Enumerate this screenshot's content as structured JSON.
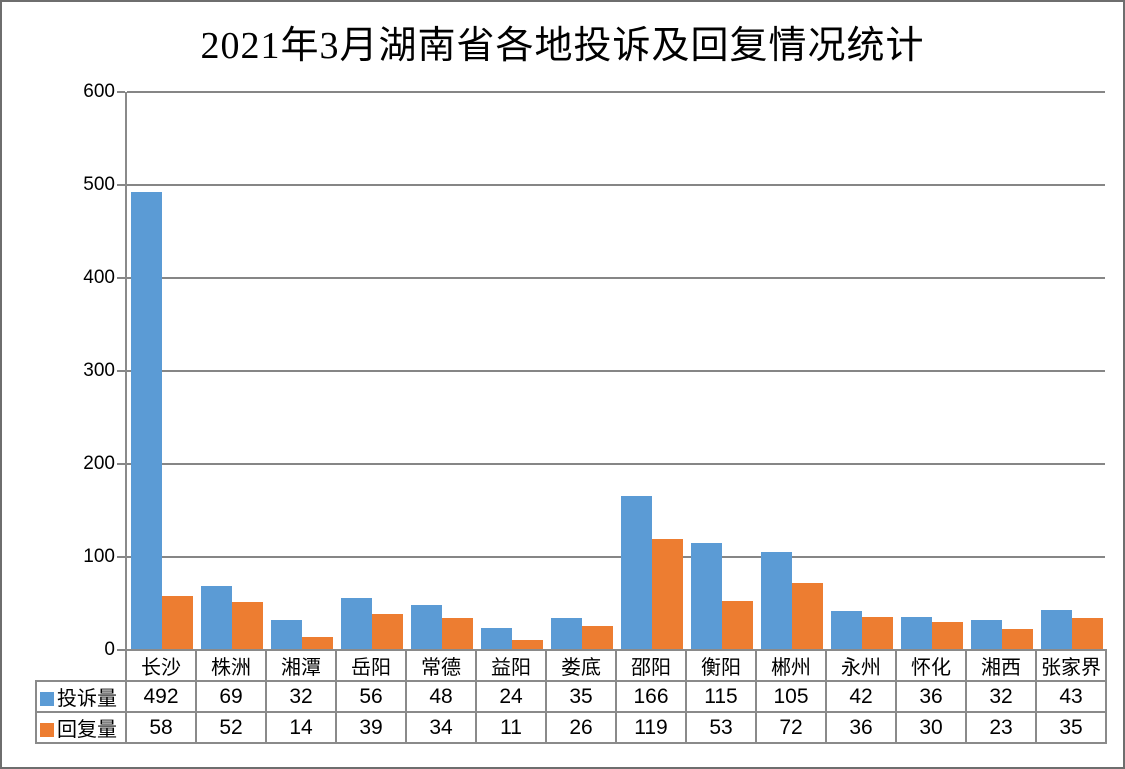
{
  "chart_data": {
    "type": "bar",
    "title": "2021年3月湖南省各地投诉及回复情况统计",
    "categories": [
      "长沙",
      "株洲",
      "湘潭",
      "岳阳",
      "常德",
      "益阳",
      "娄底",
      "邵阳",
      "衡阳",
      "郴州",
      "永州",
      "怀化",
      "湘西",
      "张家界"
    ],
    "series": [
      {
        "name": "投诉量",
        "key": "complaints",
        "color": "#5B9BD5",
        "values": [
          492,
          69,
          32,
          56,
          48,
          24,
          35,
          166,
          115,
          105,
          42,
          36,
          32,
          43
        ]
      },
      {
        "name": "回复量",
        "key": "replies",
        "color": "#ED7D31",
        "values": [
          58,
          52,
          14,
          39,
          34,
          11,
          26,
          119,
          53,
          72,
          36,
          30,
          23,
          35
        ]
      }
    ],
    "xlabel": "",
    "ylabel": "",
    "ylim": [
      0,
      600
    ],
    "yticks": [
      0,
      100,
      200,
      300,
      400,
      500,
      600
    ],
    "grid": true,
    "legend_position": "data-table-left"
  },
  "colors": {
    "series_complaints": "#5B9BD5",
    "series_replies": "#ED7D31",
    "gridline": "#868686",
    "table_border": "#8a8a8a",
    "frame_border": "#6e6e6e",
    "text": "#000000",
    "background": "#ffffff"
  }
}
